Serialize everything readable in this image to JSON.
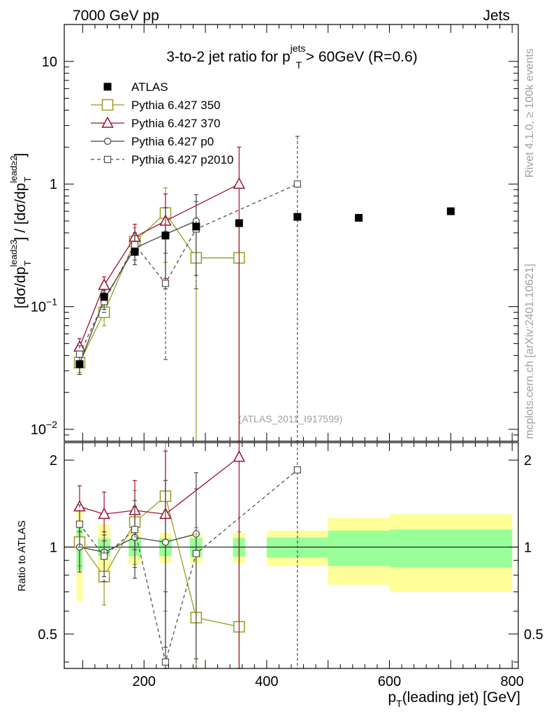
{
  "header": {
    "left": "7000 GeV pp",
    "right": "Jets"
  },
  "side_text": {
    "rivet": "Rivet 4.1.0, ≥ 100k events",
    "mcplots": "mcplots.cern.ch [arXiv:2401.10621]"
  },
  "chart_data": {
    "type": "line",
    "title_parts": {
      "pre": "3-to-2 jet ratio for p",
      "sup": "jets",
      "sub": "T",
      "post": " > 60GeV (R=0.6)"
    },
    "watermark": "(ATLAS_2011_I917599)",
    "xlabel_parts": {
      "pre": "p",
      "sub": "T",
      "post": "(leading jet) [GeV]"
    },
    "ylabel_parts": {
      "a": "[dσ/dp",
      "b": "lead≥3",
      "c": "T",
      "d": "] / [dσ/dp",
      "e": "lead≥2",
      "f": "T",
      "g": "]"
    },
    "ratio_ylabel": "Ratio to ATLAS",
    "xlim": [
      70,
      810
    ],
    "ylim": [
      0.008,
      20
    ],
    "ratio_ylim": [
      0.38,
      2.3
    ],
    "x_ticks": [
      "200",
      "400",
      "600",
      "800"
    ],
    "y_ticks": [
      {
        "v": 10,
        "t": "10"
      },
      {
        "v": 1,
        "t": "1"
      },
      {
        "v": 0.1,
        "t": "10",
        "e": "−1"
      },
      {
        "v": 0.01,
        "t": "10",
        "e": "−2"
      }
    ],
    "ratio_ticks": [
      "0.5",
      "1",
      "2"
    ],
    "data": {
      "name": "ATLAS",
      "x": [
        95,
        135,
        185,
        235,
        285,
        355,
        450,
        550,
        700
      ],
      "xerr": [
        5,
        10,
        10,
        10,
        10,
        10,
        50,
        50,
        100
      ],
      "y": [
        0.034,
        0.12,
        0.28,
        0.38,
        0.45,
        0.48,
        0.54,
        0.53,
        0.6
      ],
      "band_inner": [
        0.17,
        0.07,
        0.07,
        0.07,
        0.075,
        0.075,
        0.08,
        0.14,
        0.15
      ],
      "band_outer": [
        0.35,
        0.2,
        0.13,
        0.12,
        0.12,
        0.12,
        0.14,
        0.26,
        0.3
      ]
    },
    "series": [
      {
        "name": "Pythia 6.427 350",
        "color": "#9a9a20",
        "marker": "square",
        "dashed": false,
        "x": [
          95,
          135,
          185,
          235,
          285,
          355
        ],
        "y": [
          0.035,
          0.09,
          0.34,
          0.58,
          0.25,
          0.25
        ],
        "err": [
          0.006,
          0.02,
          0.1,
          0.35,
          0.25,
          0.25
        ],
        "ratio": [
          1.04,
          0.79,
          1.22,
          1.5,
          0.57,
          0.53
        ],
        "ratio_err": [
          0.18,
          0.16,
          0.35,
          0.9,
          0.6,
          0.6
        ]
      },
      {
        "name": "Pythia 6.427 370",
        "color": "#a01030",
        "marker": "triangle",
        "dashed": false,
        "x": [
          95,
          135,
          185,
          235,
          355
        ],
        "y": [
          0.047,
          0.15,
          0.37,
          0.5,
          1.0
        ],
        "err": [
          0.008,
          0.025,
          0.1,
          0.33,
          1.0
        ],
        "ratio": [
          1.38,
          1.3,
          1.34,
          1.3,
          2.05
        ],
        "ratio_err": [
          0.25,
          0.25,
          0.36,
          0.85,
          2.1
        ]
      },
      {
        "name": "Pythia 6.427 p0",
        "color": "#404040",
        "marker": "circle",
        "dashed": false,
        "x": [
          95,
          135,
          185,
          235,
          285
        ],
        "y": [
          0.034,
          0.115,
          0.3,
          0.39,
          0.5
        ],
        "err": [
          0.006,
          0.02,
          0.08,
          0.25,
          0.32
        ],
        "ratio": [
          1.0,
          0.96,
          1.08,
          1.04,
          1.11
        ],
        "ratio_err": [
          0.18,
          0.17,
          0.3,
          0.66,
          0.7
        ]
      },
      {
        "name": "Pythia 6.427 p2010",
        "color": "#505050",
        "marker": "square_small",
        "dashed": true,
        "x": [
          95,
          135,
          185,
          235,
          285,
          450
        ],
        "y": [
          0.041,
          0.11,
          0.32,
          0.155,
          0.43,
          1.0
        ],
        "err": [
          0.007,
          0.02,
          0.08,
          0.118,
          0.29,
          1.45
        ],
        "ratio": [
          1.2,
          0.93,
          1.15,
          0.4,
          0.95,
          1.85
        ],
        "ratio_err": [
          0.2,
          0.17,
          0.3,
          0.3,
          0.64,
          2.7
        ]
      }
    ]
  }
}
